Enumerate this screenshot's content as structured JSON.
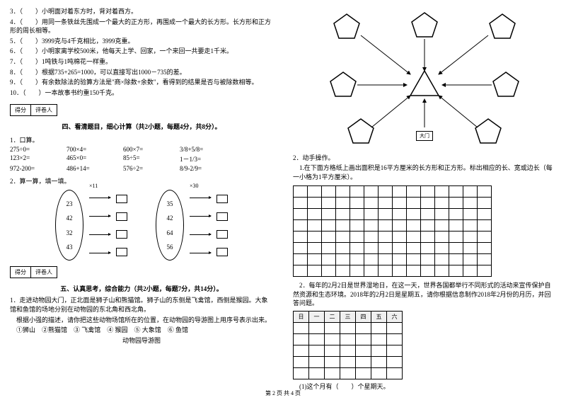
{
  "left": {
    "questions": [
      "3．（　　）小明面对着东方时，背对着西方。",
      "4．（　　）用同一条铁丝先围成一个最大的正方形，再围成一个最大的长方形。长方形和正方形的周长相等。",
      "5．（　　）3999克与4千克相比，3999克重。",
      "6．（　　）小明家离学校500米，他每天上学、回家，一个来回一共要走1千米。",
      "7．（　　）1吨铁与1吨棉花一样重。",
      "8．（　　）根据735+265=1000，可以直接写出1000－735的差。",
      "9．（　　）有余数除法的验算方法是\"商×除数+余数\"，看得到的结果是否与被除数相等。",
      "10．（　　）一本故事书约重150千克。"
    ],
    "scorebox": {
      "col1": "得分",
      "col2": "评卷人"
    },
    "section4_title": "四、看清题目，细心计算（共2小题，每题4分，共8分）。",
    "calc_label": "1．口算。",
    "calc_rows": [
      [
        "275÷0=",
        "700×4=",
        "600×7=",
        "3/8+5/8="
      ],
      [
        "123×2=",
        "465×0=",
        "85÷5=",
        "1－1/3="
      ],
      [
        "972-200=",
        "486+14=",
        "576÷2=",
        "8/9-2/9="
      ]
    ],
    "calc2_label": "2．算一算，填一填。",
    "oval1": {
      "mult": "×11",
      "vals": [
        "23",
        "42",
        "32",
        "43"
      ]
    },
    "oval2": {
      "mult": "×30",
      "vals": [
        "35",
        "42",
        "64",
        "56"
      ]
    },
    "section5_title": "五、认真思考，综合能力（共2小题，每题7分，共14分）。",
    "q5_1": "1．走进动物园大门，正北面是狮子山和熊猫馆。狮子山的东侧是飞禽馆，西侧是猴园。大象馆和鱼馆的场地分别在动物园的东北角和西北角。",
    "q5_1b": "根据小强的描述，请你把这些动物场馆所在的位置，在动物园的导游图上用序号表示出来。",
    "q5_legend": "①狮山　②熊猫馆　③ 飞禽馆　④ 猴园　⑤ 大象馆　⑥ 鱼馆",
    "q5_map_title": "动物园导游图"
  },
  "right": {
    "gate_label": "大门",
    "q2_label": "2．动手操作。",
    "q2_1": "1.在下面方格纸上画出面积是16平方厘米的长方形和正方形。标出相应的长、宽或边长（每一小格为1平方厘米）。",
    "grid": {
      "rows": 8,
      "cols": 14
    },
    "q2_2": "2．每年的2月2日是世界湿地日，在这一天，世界各国都举行不同形式的活动来宣传保护自然资源和生态环境。2018年的2月2日是星期五，请你根据信息制作2018年2月份的月历，并回答问题。",
    "week_headers": [
      "日",
      "一",
      "二",
      "三",
      "四",
      "五",
      "六"
    ],
    "week_rows": 5,
    "q2_2q": "(1)这个月有（　　）个星期天。"
  },
  "footer": "第 2 页 共 4 页",
  "colors": {
    "line": "#000000",
    "bg": "#ffffff"
  }
}
